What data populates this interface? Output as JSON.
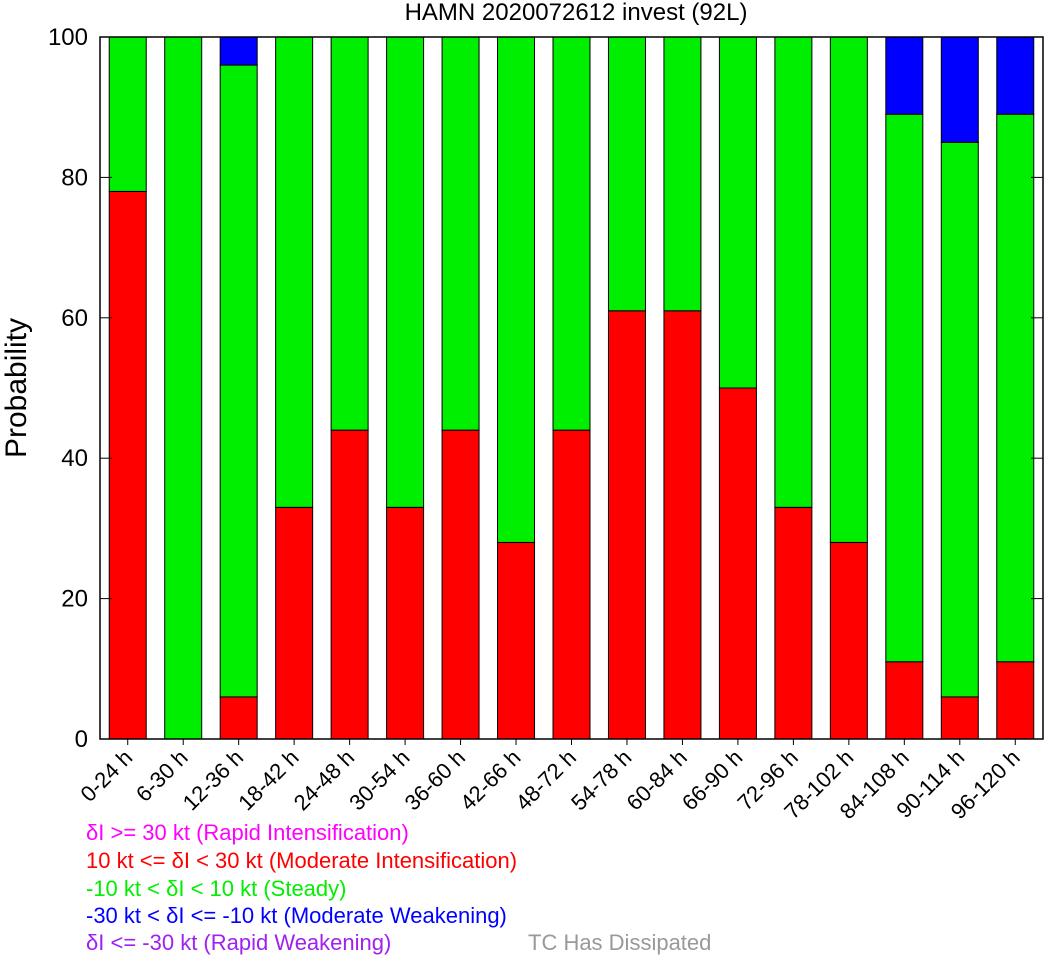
{
  "chart_data": {
    "type": "bar",
    "stacked": true,
    "title": "HAMN 2020072612 invest (92L)",
    "ylabel": "Probability",
    "xlabel": "",
    "ylim": [
      0,
      100
    ],
    "yticks": [
      0,
      20,
      40,
      60,
      80,
      100
    ],
    "categories": [
      "0-24 h",
      "6-30 h",
      "12-36 h",
      "18-42 h",
      "24-48 h",
      "30-54 h",
      "36-60 h",
      "42-66 h",
      "48-72 h",
      "54-78 h",
      "60-84 h",
      "66-90 h",
      "72-96 h",
      "78-102 h",
      "84-108 h",
      "90-114 h",
      "96-120 h"
    ],
    "series": [
      {
        "name": "10 kt <= δI < 30 kt (Moderate Intensification)",
        "color": "#ff0000",
        "values": [
          78,
          0,
          6,
          33,
          44,
          33,
          44,
          28,
          44,
          61,
          61,
          50,
          33,
          28,
          11,
          6,
          11
        ]
      },
      {
        "name": "-10 kt < δI < 10 kt (Steady)",
        "color": "#00ee00",
        "values": [
          22,
          100,
          90,
          67,
          56,
          67,
          56,
          72,
          56,
          39,
          39,
          50,
          67,
          72,
          78,
          79,
          78
        ]
      },
      {
        "name": "-30 kt < δI <= -10 kt (Moderate Weakening)",
        "color": "#0000ff",
        "values": [
          0,
          0,
          4,
          0,
          0,
          0,
          0,
          0,
          0,
          0,
          0,
          0,
          0,
          0,
          11,
          15,
          11
        ]
      }
    ],
    "legend": [
      {
        "text": "δI >= 30 kt (Rapid Intensification)",
        "color": "#ff00ff"
      },
      {
        "text": "10 kt <= δI < 30 kt (Moderate Intensification)",
        "color": "#ff0000"
      },
      {
        "text": "-10 kt < δI < 10 kt (Steady)",
        "color": "#00ee00"
      },
      {
        "text": "-30 kt < δI <= -10 kt (Moderate Weakening)",
        "color": "#0000ff"
      },
      {
        "text": "δI <= -30 kt (Rapid Weakening)",
        "color": "#a020f0"
      }
    ],
    "note": {
      "text": "TC Has Dissipated",
      "color": "#999999"
    },
    "grid": false,
    "legend_position": "bottom-left"
  }
}
